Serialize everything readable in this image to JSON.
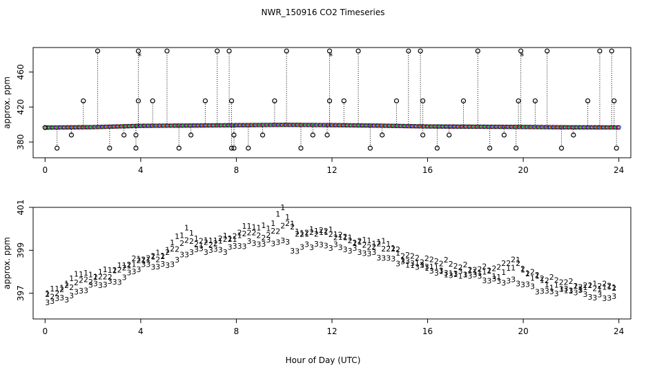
{
  "title": "NWR_150916  CO2 Timeseries",
  "xlabel": "Hour of Day (UTC)",
  "chart_data": [
    {
      "type": "scatter",
      "name": "top-panel",
      "ylabel": "approx. ppm",
      "xlim": [
        -0.5,
        24.5
      ],
      "ylim": [
        362,
        488
      ],
      "xticks": [
        0,
        4,
        8,
        12,
        16,
        20,
        24
      ],
      "yticks": [
        380,
        420,
        460
      ],
      "baseline_pattern": [
        [
          0,
          396.5
        ],
        [
          2,
          397.0
        ],
        [
          4,
          398.5
        ],
        [
          6,
          398.8
        ],
        [
          8,
          399.2
        ],
        [
          10,
          399.6
        ],
        [
          12,
          399.3
        ],
        [
          14,
          398.7
        ],
        [
          16,
          397.8
        ],
        [
          18,
          397.5
        ],
        [
          20,
          397.2
        ],
        [
          22,
          396.8
        ],
        [
          24,
          396.7
        ]
      ],
      "baseline_marker": "o",
      "spike_marker": "o",
      "cyan_marker": "*",
      "spike_x": [
        0.0,
        0.5,
        1.1,
        1.6,
        2.2,
        2.7,
        3.3,
        3.8,
        3.8,
        3.9,
        3.9,
        4.5,
        5.1,
        5.6,
        6.1,
        6.7,
        7.2,
        7.7,
        7.8,
        7.8,
        7.9,
        7.9,
        8.5,
        9.1,
        9.6,
        10.1,
        10.7,
        11.2,
        11.8,
        11.9,
        11.9,
        12.5,
        13.1,
        13.6,
        14.1,
        14.7,
        15.2,
        15.7,
        15.8,
        15.8,
        16.4,
        16.9,
        17.5,
        18.1,
        18.6,
        19.2,
        19.7,
        19.8,
        19.9,
        20.5,
        21.0,
        21.6,
        22.1,
        22.7,
        23.2,
        23.7,
        23.8,
        23.9
      ],
      "spike_y": [
        396.5,
        373,
        388,
        427,
        484,
        373,
        388,
        373,
        388,
        427,
        484,
        427,
        484,
        373,
        388,
        427,
        484,
        484,
        427,
        373,
        388,
        373,
        373,
        388,
        427,
        484,
        373,
        388,
        388,
        427,
        484,
        427,
        484,
        373,
        388,
        427,
        484,
        484,
        427,
        388,
        373,
        388,
        427,
        484,
        373,
        388,
        373,
        427,
        484,
        427,
        484,
        373,
        388,
        427,
        484,
        484,
        427,
        373
      ],
      "cyan_points": [
        [
          3.95,
          478
        ],
        [
          11.95,
          478
        ],
        [
          19.95,
          478
        ]
      ]
    },
    {
      "type": "scatter",
      "name": "bottom-panel",
      "ylabel": "approx. ppm",
      "xlim": [
        -0.5,
        24.5
      ],
      "ylim": [
        395.8,
        401.0
      ],
      "xticks": [
        0,
        4,
        8,
        12,
        16,
        20,
        24
      ],
      "yticks": [
        397,
        399,
        401
      ],
      "series": [
        {
          "name": "1",
          "label": "1",
          "color": "#cc0000",
          "offset": 0.35,
          "points": [
            [
              0.1,
              397.0
            ],
            [
              1.0,
              397.4
            ],
            [
              1.3,
              398.0
            ],
            [
              2.0,
              397.9
            ],
            [
              3.0,
              398.1
            ],
            [
              4.0,
              398.6
            ],
            [
              5.0,
              398.8
            ],
            [
              5.9,
              400.1
            ],
            [
              6.5,
              399.4
            ],
            [
              7.0,
              399.4
            ],
            [
              8.0,
              399.6
            ],
            [
              8.5,
              400.3
            ],
            [
              9.0,
              400.0
            ],
            [
              9.5,
              400.1
            ],
            [
              9.9,
              400.9
            ],
            [
              10.0,
              401.0
            ],
            [
              10.5,
              399.9
            ],
            [
              11.0,
              399.9
            ],
            [
              12.0,
              399.8
            ],
            [
              13.0,
              399.5
            ],
            [
              14.0,
              399.3
            ],
            [
              14.5,
              399.3
            ],
            [
              15.0,
              398.5
            ],
            [
              16.0,
              398.2
            ],
            [
              17.0,
              397.9
            ],
            [
              18.0,
              398.0
            ],
            [
              19.0,
              397.8
            ],
            [
              19.8,
              398.6
            ],
            [
              20.0,
              398.0
            ],
            [
              21.0,
              397.4
            ],
            [
              22.0,
              397.2
            ],
            [
              23.0,
              397.3
            ],
            [
              23.8,
              397.3
            ]
          ]
        },
        {
          "name": "2",
          "label": "2",
          "color": "#00bb00",
          "offset": 0.12,
          "points": [
            [
              0.1,
              396.9
            ],
            [
              1.0,
              397.3
            ],
            [
              2.0,
              397.7
            ],
            [
              3.0,
              398.0
            ],
            [
              4.0,
              398.6
            ],
            [
              5.0,
              398.8
            ],
            [
              6.0,
              399.4
            ],
            [
              7.0,
              399.4
            ],
            [
              8.0,
              399.6
            ],
            [
              8.5,
              399.9
            ],
            [
              9.0,
              399.7
            ],
            [
              9.8,
              399.9
            ],
            [
              10.0,
              400.3
            ],
            [
              10.5,
              399.8
            ],
            [
              11.0,
              399.8
            ],
            [
              11.5,
              400.0
            ],
            [
              12.0,
              399.7
            ],
            [
              13.0,
              399.4
            ],
            [
              14.0,
              399.2
            ],
            [
              15.0,
              398.8
            ],
            [
              16.0,
              398.6
            ],
            [
              17.0,
              398.3
            ],
            [
              18.0,
              398.2
            ],
            [
              19.0,
              398.1
            ],
            [
              19.5,
              398.6
            ],
            [
              20.0,
              398.2
            ],
            [
              21.0,
              397.6
            ],
            [
              22.0,
              397.5
            ],
            [
              23.0,
              397.3
            ],
            [
              23.8,
              397.3
            ]
          ]
        },
        {
          "name": "3",
          "label": "3",
          "color": "#0000cc",
          "offset": -0.28,
          "points": [
            [
              0.1,
              396.6
            ],
            [
              1.0,
              396.9
            ],
            [
              2.0,
              397.3
            ],
            [
              3.0,
              397.6
            ],
            [
              4.0,
              398.2
            ],
            [
              5.0,
              398.3
            ],
            [
              6.0,
              398.9
            ],
            [
              7.0,
              399.0
            ],
            [
              8.0,
              399.2
            ],
            [
              9.0,
              399.3
            ],
            [
              9.8,
              399.5
            ],
            [
              10.0,
              399.5
            ],
            [
              10.5,
              398.9
            ],
            [
              11.0,
              399.2
            ],
            [
              12.0,
              399.3
            ],
            [
              13.0,
              398.9
            ],
            [
              14.0,
              398.8
            ],
            [
              15.0,
              398.4
            ],
            [
              16.0,
              398.2
            ],
            [
              17.0,
              397.9
            ],
            [
              18.0,
              397.8
            ],
            [
              19.0,
              397.6
            ],
            [
              20.0,
              397.4
            ],
            [
              21.0,
              397.1
            ],
            [
              22.0,
              397.1
            ],
            [
              23.0,
              396.9
            ],
            [
              23.8,
              396.8
            ]
          ]
        }
      ]
    }
  ]
}
